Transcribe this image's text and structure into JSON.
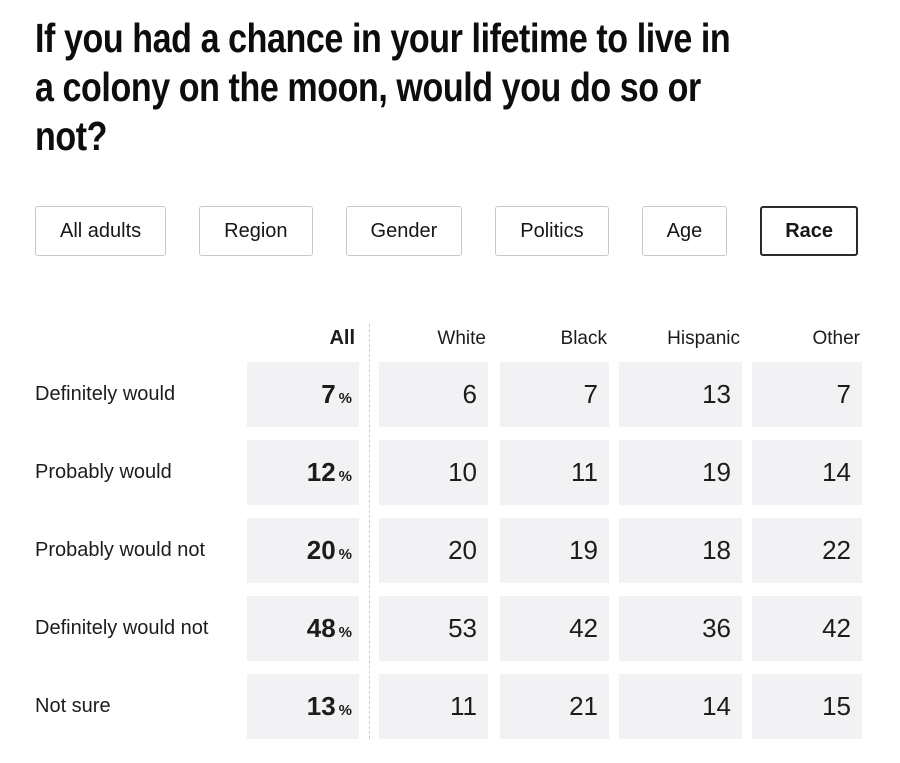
{
  "title": "If you had a chance in your lifetime to live in a colony on the moon, would you do so or not?",
  "title_lines": [
    "If you had a chance in your lifetime to live in",
    "a colony on the moon, would you do so or",
    "not?"
  ],
  "filters": [
    {
      "label": "All adults",
      "selected": false
    },
    {
      "label": "Region",
      "selected": false
    },
    {
      "label": "Gender",
      "selected": false
    },
    {
      "label": "Politics",
      "selected": false
    },
    {
      "label": "Age",
      "selected": false
    },
    {
      "label": "Race",
      "selected": true
    }
  ],
  "table": {
    "all_header": "All",
    "group_headers": [
      "White",
      "Black",
      "Hispanic",
      "Other"
    ],
    "percent_symbol": "%",
    "rows": [
      {
        "label": "Definitely would",
        "all": "7",
        "values": [
          "6",
          "7",
          "13",
          "7"
        ]
      },
      {
        "label": "Probably would",
        "all": "12",
        "values": [
          "10",
          "11",
          "19",
          "14"
        ]
      },
      {
        "label": "Probably would not",
        "all": "20",
        "values": [
          "20",
          "19",
          "18",
          "22"
        ]
      },
      {
        "label": "Definitely would not",
        "all": "48",
        "values": [
          "53",
          "42",
          "36",
          "42"
        ]
      },
      {
        "label": "Not sure",
        "all": "13",
        "values": [
          "11",
          "21",
          "14",
          "15"
        ]
      }
    ]
  },
  "colors": {
    "cell_background": "#f2f2f4",
    "text": "#1c1c1c",
    "title_text": "#0d0d0d",
    "button_border": "#c8c8c8",
    "selected_button_border": "#2b2b2b",
    "divider": "#cccccc"
  }
}
